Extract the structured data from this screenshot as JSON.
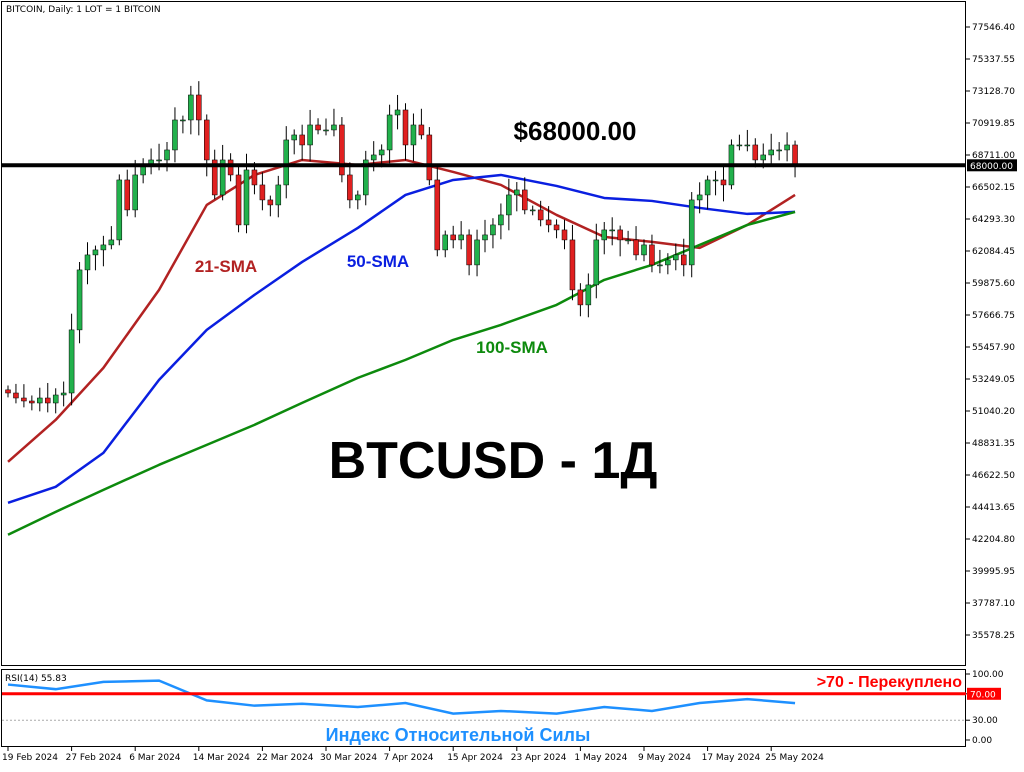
{
  "header": "BITCOIN, Daily:  1 LOT = 1 BITCOIN",
  "chart_data": {
    "type": "candlestick",
    "symbol": "BTCUSD",
    "timeframe": "Daily",
    "ylim": [
      35578.25,
      77546.4
    ],
    "price_ticks": [
      "77546.40",
      "75337.55",
      "73128.70",
      "70919.85",
      "68711.00",
      "66502.15",
      "64293.30",
      "62084.45",
      "59875.60",
      "57666.75",
      "55457.90",
      "53249.05",
      "51040.20",
      "48831.35",
      "46622.50",
      "44413.65",
      "42204.80",
      "39995.95",
      "37787.10",
      "35578.25"
    ],
    "date_ticks": [
      {
        "label": "19 Feb 2024",
        "index": 0
      },
      {
        "label": "27 Feb 2024",
        "index": 8
      },
      {
        "label": "6 Mar 2024",
        "index": 16
      },
      {
        "label": "14 Mar 2024",
        "index": 24
      },
      {
        "label": "22 Mar 2024",
        "index": 32
      },
      {
        "label": "30 Mar 2024",
        "index": 40
      },
      {
        "label": "7 Apr 2024",
        "index": 48
      },
      {
        "label": "15 Apr 2024",
        "index": 56
      },
      {
        "label": "23 Apr 2024",
        "index": 64
      },
      {
        "label": "1 May 2024",
        "index": 72
      },
      {
        "label": "9 May 2024",
        "index": 80
      },
      {
        "label": "17 May 2024",
        "index": 88
      },
      {
        "label": "25 May 2024",
        "index": 96
      }
    ],
    "first_date": "19 Feb 2024",
    "closes": [
      52283,
      51938,
      51731,
      51593,
      51938,
      51593,
      52145,
      52283,
      56639,
      60779,
      61814,
      62159,
      62504,
      62849,
      66989,
      64919,
      67334,
      68024,
      68369,
      68369,
      69059,
      71129,
      71129,
      72854,
      71129,
      68369,
      65954,
      68369,
      67334,
      63884,
      67679,
      66644,
      65609,
      65264,
      66644,
      69749,
      70094,
      69404,
      70784,
      70439,
      70439,
      70784,
      67334,
      65609,
      65954,
      68369,
      68714,
      69059,
      71474,
      71819,
      69404,
      70784,
      70094,
      66989,
      62159,
      63194,
      62849,
      63194,
      61124,
      62849,
      63194,
      63884,
      64574,
      65954,
      66299,
      64919,
      64919,
      64229,
      63884,
      63539,
      62849,
      59399,
      58364,
      59744,
      62849,
      63539,
      63539,
      62849,
      62849,
      61814,
      62504,
      61124,
      61124,
      61469,
      61814,
      61124,
      65609,
      65954,
      66989,
      66989,
      66644,
      69404,
      69404,
      69404,
      68369,
      68714,
      69059,
      69059,
      69404,
      68024
    ],
    "first_open": 52500,
    "level_line": {
      "value": 68000.0,
      "label": "68000.00",
      "color": "#000000"
    },
    "sma_sample_dates": [
      "19 Feb",
      "25 Feb",
      "2 Mar",
      "9 Mar",
      "15 Mar",
      "21 Mar",
      "27 Mar",
      "3 Apr",
      "9 Apr",
      "15 Apr",
      "21 Apr",
      "28 Apr",
      "4 May",
      "10 May",
      "16 May",
      "22 May",
      "28 May"
    ],
    "sma_sample_index": [
      0,
      6,
      12,
      19,
      25,
      31,
      37,
      44,
      50,
      56,
      62,
      69,
      75,
      81,
      87,
      93,
      99
    ],
    "series": [
      {
        "name": "21-SMA",
        "color": "#b22222",
        "values": [
          47531,
          50429,
          54017,
          59399,
          65264,
          67334,
          68369,
          68024,
          68369,
          67541,
          66644,
          64574,
          63056,
          62711,
          62297,
          63884,
          65954
        ]
      },
      {
        "name": "50-SMA",
        "color": "#0a1fe0",
        "values": [
          44702,
          45806,
          48152,
          53189,
          56639,
          59054,
          61331,
          63677,
          65954,
          66989,
          67334,
          66575,
          65747,
          65540,
          65057,
          64643,
          64781
        ]
      },
      {
        "name": "100-SMA",
        "color": "#0d8a0d",
        "values": [
          42494,
          44081,
          45599,
          47324,
          48704,
          50084,
          51602,
          53327,
          54569,
          55949,
          56984,
          58364,
          60089,
          61124,
          62504,
          63884,
          64781
        ]
      }
    ],
    "colors": {
      "bull": "#22b14c",
      "bear": "#e02020",
      "wick": "#000000"
    }
  },
  "rsi": {
    "label": "RSI(14) 55.83",
    "ticks": [
      "100.00",
      "70.00",
      "30.00",
      "0.00"
    ],
    "overbought": {
      "value": 70,
      "label": "70.00",
      "color": "#ff0000"
    },
    "oversold": 30,
    "sample_index": [
      0,
      6,
      12,
      19,
      25,
      31,
      37,
      44,
      50,
      56,
      62,
      69,
      75,
      81,
      87,
      93,
      99
    ],
    "values": [
      84,
      77,
      88,
      90,
      60,
      52,
      55,
      50,
      56,
      40,
      44,
      40,
      50,
      44,
      56,
      62,
      55.83
    ],
    "color": "#1e90ff"
  },
  "annotations": {
    "level_price": "$68000.00",
    "sma21": "21-SMA",
    "sma50": "50-SMA",
    "sma100": "100-SMA",
    "title": "BTCUSD - 1Д",
    "overbought_note": ">70 - Перекуплено",
    "rsi_note": "Индекс Относительной Силы"
  }
}
